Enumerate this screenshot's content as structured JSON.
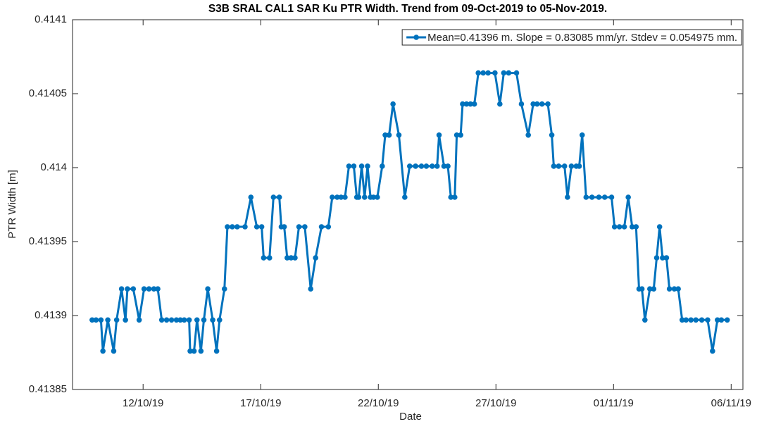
{
  "chart_data": {
    "type": "line",
    "title": "S3B SRAL CAL1 SAR Ku PTR Width. Trend from 09-Oct-2019 to 05-Nov-2019.",
    "x_label": "Date",
    "y_label": "PTR Width [m]",
    "xlim": [
      "2019-10-09T00:00",
      "2019-11-06T12:00"
    ],
    "xticks": [
      {
        "value": "2019-10-12T00:00",
        "label": "12/10/19"
      },
      {
        "value": "2019-10-17T00:00",
        "label": "17/10/19"
      },
      {
        "value": "2019-10-22T00:00",
        "label": "22/10/19"
      },
      {
        "value": "2019-10-27T00:00",
        "label": "27/10/19"
      },
      {
        "value": "2019-11-01T00:00",
        "label": "01/11/19"
      },
      {
        "value": "2019-11-06T00:00",
        "label": "06/11/19"
      }
    ],
    "ylim": [
      0.41385,
      0.4141
    ],
    "yticks": [
      0.41385,
      0.4139,
      0.41395,
      0.414,
      0.41405,
      0.4141
    ],
    "grid": false,
    "legend": "northeast",
    "x": [
      "2019-10-09T20:00",
      "2019-10-10T00:00",
      "2019-10-10T05:00",
      "2019-10-10T07:00",
      "2019-10-10T12:00",
      "2019-10-10T18:00",
      "2019-10-10T21:00",
      "2019-10-11T02:00",
      "2019-10-11T06:00",
      "2019-10-11T08:00",
      "2019-10-11T14:00",
      "2019-10-11T20:00",
      "2019-10-12T01:00",
      "2019-10-12T06:00",
      "2019-10-12T11:00",
      "2019-10-12T15:00",
      "2019-10-12T19:00",
      "2019-10-13T00:00",
      "2019-10-13T05:00",
      "2019-10-13T10:00",
      "2019-10-13T14:00",
      "2019-10-13T18:00",
      "2019-10-13T23:00",
      "2019-10-14T00:00",
      "2019-10-14T04:00",
      "2019-10-14T07:00",
      "2019-10-14T11:00",
      "2019-10-14T14:00",
      "2019-10-14T18:00",
      "2019-10-14T23:00",
      "2019-10-15T03:00",
      "2019-10-15T06:00",
      "2019-10-15T11:00",
      "2019-10-15T14:00",
      "2019-10-15T19:00",
      "2019-10-16T00:00",
      "2019-10-16T08:00",
      "2019-10-16T14:00",
      "2019-10-16T20:00",
      "2019-10-17T01:00",
      "2019-10-17T03:00",
      "2019-10-17T09:00",
      "2019-10-17T13:00",
      "2019-10-17T19:00",
      "2019-10-17T21:00",
      "2019-10-18T00:00",
      "2019-10-18T03:00",
      "2019-10-18T07:00",
      "2019-10-18T11:00",
      "2019-10-18T15:00",
      "2019-10-18T21:00",
      "2019-10-19T03:00",
      "2019-10-19T08:00",
      "2019-10-19T14:00",
      "2019-10-19T21:00",
      "2019-10-20T01:00",
      "2019-10-20T06:00",
      "2019-10-20T10:00",
      "2019-10-20T14:00",
      "2019-10-20T18:00",
      "2019-10-20T23:00",
      "2019-10-21T02:00",
      "2019-10-21T04:00",
      "2019-10-21T07:00",
      "2019-10-21T10:00",
      "2019-10-21T13:00",
      "2019-10-21T16:00",
      "2019-10-21T19:00",
      "2019-10-21T23:00",
      "2019-10-22T04:00",
      "2019-10-22T07:00",
      "2019-10-22T11:00",
      "2019-10-22T15:00",
      "2019-10-22T21:00",
      "2019-10-23T03:00",
      "2019-10-23T08:00",
      "2019-10-23T14:00",
      "2019-10-23T20:00",
      "2019-10-24T01:00",
      "2019-10-24T07:00",
      "2019-10-24T12:00",
      "2019-10-24T14:00",
      "2019-10-24T19:00",
      "2019-10-24T23:00",
      "2019-10-25T02:00",
      "2019-10-25T06:00",
      "2019-10-25T08:00",
      "2019-10-25T12:00",
      "2019-10-25T14:00",
      "2019-10-25T18:00",
      "2019-10-25T22:00",
      "2019-10-26T02:00",
      "2019-10-26T06:00",
      "2019-10-26T11:00",
      "2019-10-26T16:00",
      "2019-10-26T23:00",
      "2019-10-27T04:00",
      "2019-10-27T08:00",
      "2019-10-27T13:00",
      "2019-10-27T21:00",
      "2019-10-28T02:00",
      "2019-10-28T09:00",
      "2019-10-28T14:00",
      "2019-10-28T18:00",
      "2019-10-28T23:00",
      "2019-10-29T05:00",
      "2019-10-29T09:00",
      "2019-10-29T11:00",
      "2019-10-29T16:00",
      "2019-10-29T22:00",
      "2019-10-30T01:00",
      "2019-10-30T05:00",
      "2019-10-30T10:00",
      "2019-10-30T13:00",
      "2019-10-30T16:00",
      "2019-10-30T20:00",
      "2019-10-31T02:00",
      "2019-10-31T09:00",
      "2019-10-31T15:00",
      "2019-10-31T22:00",
      "2019-11-01T01:00",
      "2019-11-01T06:00",
      "2019-11-01T11:00",
      "2019-11-01T15:00",
      "2019-11-01T19:00",
      "2019-11-01T23:00",
      "2019-11-02T02:00",
      "2019-11-02T05:00",
      "2019-11-02T08:00",
      "2019-11-02T13:00",
      "2019-11-02T17:00",
      "2019-11-02T20:00",
      "2019-11-02T23:00",
      "2019-11-03T02:00",
      "2019-11-03T06:00",
      "2019-11-03T09:00",
      "2019-11-03T14:00",
      "2019-11-03T18:00",
      "2019-11-03T22:00",
      "2019-11-04T02:00",
      "2019-11-04T07:00",
      "2019-11-04T12:00",
      "2019-11-04T18:00",
      "2019-11-05T00:00",
      "2019-11-05T05:00",
      "2019-11-05T10:00",
      "2019-11-05T14:00",
      "2019-11-05T20:00"
    ],
    "series": [
      {
        "name": "Mean=0.41396 m. Slope = 0.83085 mm/yr. Stdev = 0.054975 mm.",
        "color": "#0072bd",
        "values": [
          0.413897,
          0.413897,
          0.413897,
          0.413876,
          0.413897,
          0.413876,
          0.413897,
          0.413918,
          0.413897,
          0.413918,
          0.413918,
          0.413897,
          0.413918,
          0.413918,
          0.413918,
          0.413918,
          0.413897,
          0.413897,
          0.413897,
          0.413897,
          0.413897,
          0.413897,
          0.413897,
          0.413876,
          0.413876,
          0.413897,
          0.413876,
          0.413897,
          0.413918,
          0.413897,
          0.413876,
          0.413897,
          0.413918,
          0.41396,
          0.41396,
          0.41396,
          0.41396,
          0.41398,
          0.41396,
          0.41396,
          0.413939,
          0.413939,
          0.41398,
          0.41398,
          0.41396,
          0.41396,
          0.413939,
          0.413939,
          0.413939,
          0.41396,
          0.41396,
          0.413918,
          0.413939,
          0.41396,
          0.41396,
          0.41398,
          0.41398,
          0.41398,
          0.41398,
          0.414001,
          0.414001,
          0.41398,
          0.41398,
          0.414001,
          0.41398,
          0.414001,
          0.41398,
          0.41398,
          0.41398,
          0.414001,
          0.414022,
          0.414022,
          0.414043,
          0.414022,
          0.41398,
          0.414001,
          0.414001,
          0.414001,
          0.414001,
          0.414001,
          0.414001,
          0.414022,
          0.414001,
          0.414001,
          0.41398,
          0.41398,
          0.414022,
          0.414022,
          0.414043,
          0.414043,
          0.414043,
          0.414043,
          0.414064,
          0.414064,
          0.414064,
          0.414064,
          0.414043,
          0.414064,
          0.414064,
          0.414064,
          0.414043,
          0.414022,
          0.414043,
          0.414043,
          0.414043,
          0.414043,
          0.414022,
          0.414001,
          0.414001,
          0.414001,
          0.41398,
          0.414001,
          0.414001,
          0.414001,
          0.414022,
          0.41398,
          0.41398,
          0.41398,
          0.41398,
          0.41398,
          0.41396,
          0.41396,
          0.41396,
          0.41398,
          0.41396,
          0.41396,
          0.413918,
          0.413918,
          0.413897,
          0.413918,
          0.413918,
          0.413939,
          0.41396,
          0.413939,
          0.413939,
          0.413918,
          0.413918,
          0.413918,
          0.413897,
          0.413897,
          0.413897,
          0.413897,
          0.413897,
          0.413897,
          0.413876,
          0.413897,
          0.413897,
          0.413897
        ]
      }
    ]
  }
}
